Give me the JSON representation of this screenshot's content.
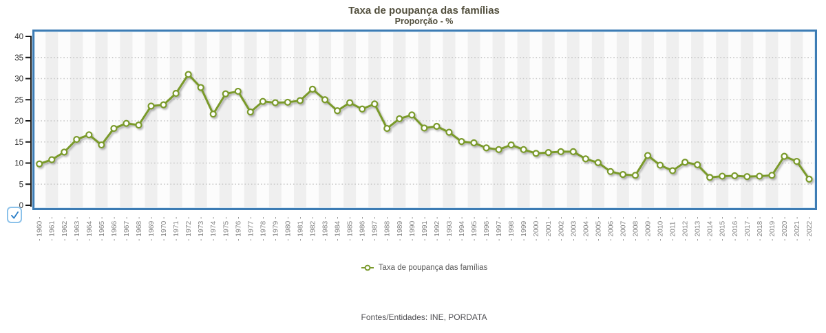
{
  "header": {
    "title": "Taxa de poupança das famílias",
    "subtitle": "Proporção - %"
  },
  "chart_data": {
    "type": "line",
    "title": "Taxa de poupança das famílias",
    "subtitle": "Proporção - %",
    "xlabel": "",
    "ylabel": "",
    "ylim": [
      0,
      40
    ],
    "yticks": [
      0,
      5,
      10,
      15,
      20,
      25,
      30,
      35,
      40
    ],
    "grid": "horizontal-dotted",
    "legend_position": "bottom-center",
    "x_tick_label_format": "- {year} -",
    "x_tick_label_rotation": -90,
    "categories": [
      "1960",
      "1961",
      "1962",
      "1963",
      "1964",
      "1965",
      "1966",
      "1967",
      "1968",
      "1969",
      "1970",
      "1971",
      "1972",
      "1973",
      "1974",
      "1975",
      "1976",
      "1977",
      "1978",
      "1979",
      "1980",
      "1981",
      "1982",
      "1983",
      "1984",
      "1985",
      "1986",
      "1987",
      "1988",
      "1989",
      "1990",
      "1991",
      "1992",
      "1993",
      "1994",
      "1995",
      "1996",
      "1997",
      "1998",
      "1999",
      "2000",
      "2001",
      "2002",
      "2003",
      "2004",
      "2005",
      "2006",
      "2007",
      "2008",
      "2009",
      "2010",
      "2011",
      "2012",
      "2013",
      "2014",
      "2015",
      "2016",
      "2017",
      "2018",
      "2019",
      "2020",
      "2021",
      "2022"
    ],
    "series": [
      {
        "name": "Taxa de poupança das famílias",
        "color": "#7a9a2c",
        "marker": "circle-open",
        "values": [
          9.8,
          10.8,
          12.6,
          15.6,
          16.7,
          14.3,
          18.2,
          19.4,
          19.0,
          23.5,
          23.8,
          26.5,
          31.0,
          27.9,
          21.6,
          26.4,
          27.0,
          22.1,
          24.6,
          24.3,
          24.4,
          24.8,
          27.5,
          25.0,
          22.4,
          24.3,
          22.8,
          24.0,
          18.2,
          20.5,
          21.4,
          18.3,
          18.7,
          17.3,
          15.1,
          14.8,
          13.6,
          13.2,
          14.3,
          13.2,
          12.3,
          12.5,
          12.7,
          12.7,
          11.0,
          10.1,
          8.0,
          7.3,
          7.1,
          11.8,
          9.5,
          8.2,
          10.2,
          9.6,
          6.6,
          6.9,
          7.0,
          6.8,
          6.9,
          7.1,
          11.6,
          10.4,
          6.2
        ]
      }
    ]
  },
  "legend": {
    "items": [
      {
        "label": "Taxa de poupança das famílias",
        "marker": "line-circle-icon",
        "color": "#7a9a2c"
      }
    ]
  },
  "controls": {
    "series_checkbox": {
      "checked": true,
      "check_glyph": "✓"
    }
  },
  "footer": {
    "sources": "Fontes/Entidades: INE, PORDATA"
  },
  "colors": {
    "line": "#7a9a2c",
    "marker_fill": "#ffffff",
    "plot_border": "#3d7cb4",
    "plot_border_inner": "#d9eaf6",
    "plot_bg": "#fcfcfc",
    "stripe": "#efefef",
    "grid_dots": "#c7c7c7",
    "axis_line": "#161616",
    "title_text": "#524f3d",
    "y_label_text": "#303030",
    "x_label_text": "#848484",
    "legend_text": "#585858",
    "footer_text": "#515155",
    "checkbox_border": "#8cc2ea",
    "checkbox_check": "#2a7ec7"
  }
}
